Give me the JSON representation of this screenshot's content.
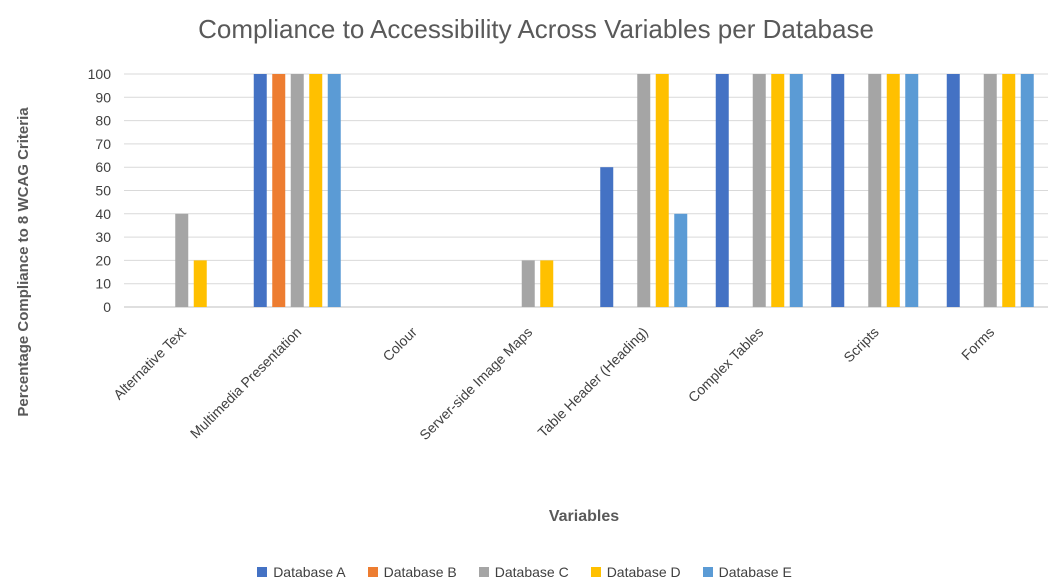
{
  "chart_data": {
    "type": "bar",
    "title": "Compliance to Accessibility Across Variables per Database",
    "xlabel": "Variables",
    "ylabel": "Percentage Compliance to 8 WCAG Criteria",
    "ylim": [
      0,
      100
    ],
    "yticks": [
      0,
      10,
      20,
      30,
      40,
      50,
      60,
      70,
      80,
      90,
      100
    ],
    "grid": true,
    "legend_position": "bottom",
    "categories": [
      "Alternative Text",
      "Multimedia Presentation",
      "Colour",
      "Server-side Image Maps",
      "Table Header (Heading)",
      "Complex Tables",
      "Scripts",
      "Forms"
    ],
    "series": [
      {
        "name": "Database A",
        "color": "#4472c4",
        "values": [
          0,
          100,
          0,
          0,
          60,
          100,
          100,
          100
        ]
      },
      {
        "name": "Database B",
        "color": "#ed7d31",
        "values": [
          0,
          100,
          0,
          0,
          0,
          0,
          0,
          0
        ]
      },
      {
        "name": "Database C",
        "color": "#a5a5a5",
        "values": [
          40,
          100,
          0,
          20,
          100,
          100,
          100,
          100
        ]
      },
      {
        "name": "Database D",
        "color": "#ffc000",
        "values": [
          20,
          100,
          0,
          20,
          100,
          100,
          100,
          100
        ]
      },
      {
        "name": "Database E",
        "color": "#5b9bd5",
        "values": [
          0,
          100,
          0,
          0,
          40,
          100,
          100,
          100
        ]
      }
    ]
  }
}
